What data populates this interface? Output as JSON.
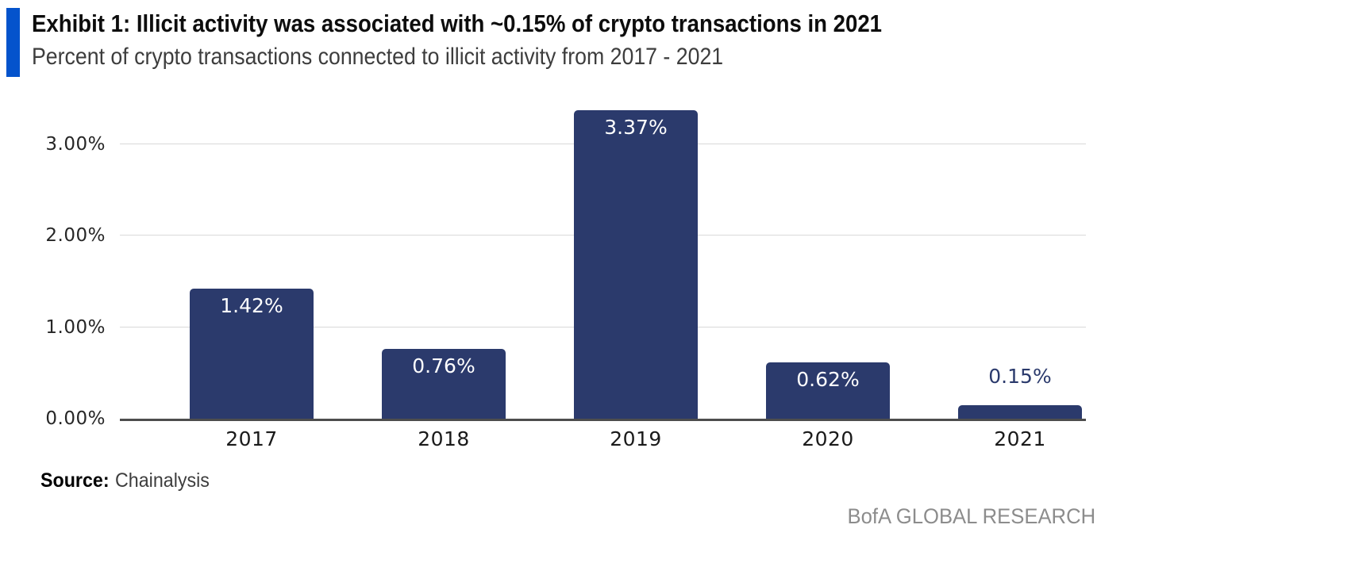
{
  "header": {
    "accent_color": "#0453cc",
    "title": "Exhibit 1: Illicit activity was associated with ~0.15% of crypto transactions in 2021",
    "subtitle": "Percent of crypto transactions connected to illicit activity from 2017 - 2021"
  },
  "chart_data": {
    "type": "bar",
    "categories": [
      "2017",
      "2018",
      "2019",
      "2020",
      "2021"
    ],
    "values": [
      1.42,
      0.76,
      3.37,
      0.62,
      0.15
    ],
    "data_labels": [
      "1.42%",
      "0.76%",
      "3.37%",
      "0.62%",
      "0.15%"
    ],
    "title": "",
    "xlabel": "",
    "ylabel": "",
    "ylim": [
      0,
      3.55
    ],
    "ytick_values": [
      0,
      1,
      2,
      3
    ],
    "ytick_labels": [
      "0.00%",
      "1.00%",
      "2.00%",
      "3.00%"
    ],
    "grid": true,
    "legend": "none",
    "bar_color": "#2b3a6c",
    "inside_label_color": "#ffffff",
    "outside_label_color": "#2b3a6c",
    "gridline_color": "#d9d9d9",
    "axis_line_color": "#4d4d4d"
  },
  "footer": {
    "source_label": "Source:",
    "source_value": "Chainalysis",
    "branding": "BofA GLOBAL RESEARCH"
  }
}
